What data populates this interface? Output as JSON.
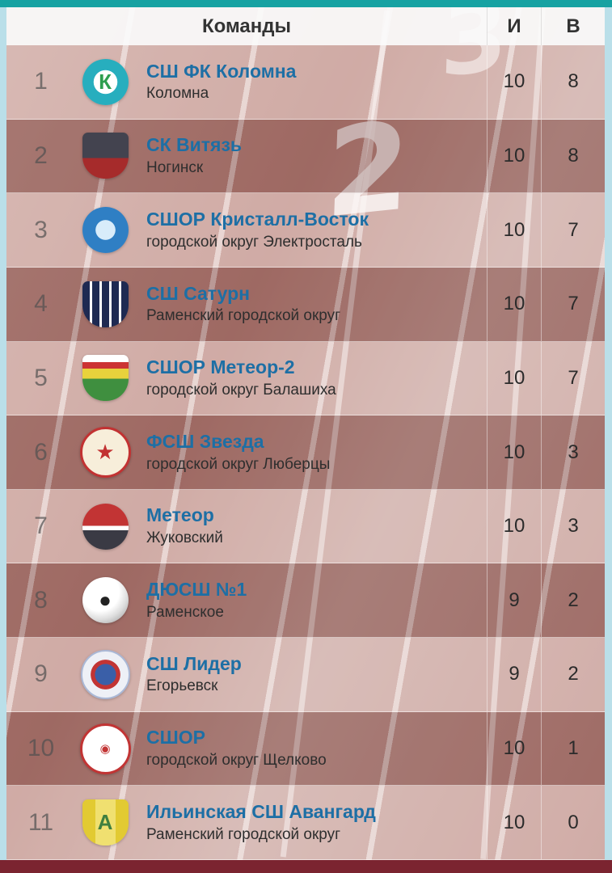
{
  "colors": {
    "top_strip": "#17a2a2",
    "side_bg": "#badfe9",
    "bottom_strip": "#7b2430",
    "team_link": "#1d6fa5"
  },
  "background": {
    "lane_number_2": "2",
    "lane_number_3": "3"
  },
  "table": {
    "headers": {
      "teams": "Команды",
      "games": "И",
      "wins": "В"
    },
    "rows": [
      {
        "pos": "1",
        "name": "СШ ФК Коломна",
        "city": "Коломна",
        "games": "10",
        "wins": "8",
        "logo": {
          "style": "background: radial-gradient(circle at 50% 50%, #ffffff 0 36%, #27aebe 37% 100%); color:#2e9e4f;",
          "glyph": "К"
        }
      },
      {
        "pos": "2",
        "name": "СК Витязь",
        "city": "Ногинск",
        "games": "10",
        "wins": "8",
        "logo": {
          "style": "background: linear-gradient(180deg,#43434f 0 55%, #a62b2b 55% 100%); border-radius:12% 12% 48% 48%; color:#ffffff;",
          "glyph": ""
        }
      },
      {
        "pos": "3",
        "name": "СШОР Кристалл-Восток",
        "city": "городской округ Электросталь",
        "games": "10",
        "wins": "7",
        "logo": {
          "style": "background: radial-gradient(circle, #d8ecfa 0 30%, #2f7fc4 31% 100%); color:#ffffff;",
          "glyph": ""
        }
      },
      {
        "pos": "4",
        "name": "СШ Сатурн",
        "city": "Раменский городской округ",
        "games": "10",
        "wins": "7",
        "logo": {
          "style": "background: repeating-linear-gradient(90deg, #1e2a52 0 9px, #ffffff 9px 12px); border-radius:12% 12% 48% 48%; color:#ffffff;",
          "glyph": ""
        }
      },
      {
        "pos": "5",
        "name": "СШОР Метеор-2",
        "city": "городской округ Балашиха",
        "games": "10",
        "wins": "7",
        "logo": {
          "style": "background: linear-gradient(180deg,#ffffff 0 16%, #cc3333 16% 30%, #e8d23c 30% 52%, #3f8f3f 52% 100%); border-radius:12% 12% 48% 48%; color:#e8d23c;",
          "glyph": ""
        }
      },
      {
        "pos": "6",
        "name": "ФСШ Звезда",
        "city": "городской округ Люберцы",
        "games": "10",
        "wins": "3",
        "logo": {
          "style": "background:#f7eeda; border:3px solid #c23232; color:#c23232;",
          "glyph": "★"
        }
      },
      {
        "pos": "7",
        "name": "Метеор",
        "city": "Жуковский",
        "games": "10",
        "wins": "3",
        "logo": {
          "style": "background: linear-gradient(180deg,#c23434 0 48%, #ffffff 48% 58%, #3a3a44 58% 100%); color:#ffffff;",
          "glyph": ""
        }
      },
      {
        "pos": "8",
        "name": "ДЮСШ №1",
        "city": "Раменское",
        "games": "9",
        "wins": "2",
        "logo": {
          "style": "background: radial-gradient(circle at 38% 32%, #ffffff 0 45%, #dddddd 65%, #8a8a8a 100%); color:#222222;",
          "glyph": "●"
        }
      },
      {
        "pos": "9",
        "name": "СШ Лидер",
        "city": "Егорьевск",
        "games": "9",
        "wins": "2",
        "logo": {
          "style": "background: radial-gradient(circle, #3a5fa8 0 32%, #c23434 33% 45%, #eef0f6 46% 100%); border:2px solid #aab8d6; color:#ffffff;",
          "glyph": ""
        }
      },
      {
        "pos": "10",
        "name": "СШОР",
        "city": "городской округ Щелково",
        "games": "10",
        "wins": "1",
        "logo": {
          "style": "background:#ffffff; border:3px solid #c23434; color:#c23434; font-size:15px;",
          "glyph": "◉"
        }
      },
      {
        "pos": "11",
        "name": "Ильинская СШ Авангард",
        "city": "Раменский городской округ",
        "games": "10",
        "wins": "0",
        "logo": {
          "style": "background: linear-gradient(90deg,#e2ca32 0 28%, #f0e070 28% 72%, #e2ca32 72% 100%); border-radius:12% 12% 48% 48%; color:#3f7f3f;",
          "glyph": "А"
        }
      }
    ]
  }
}
